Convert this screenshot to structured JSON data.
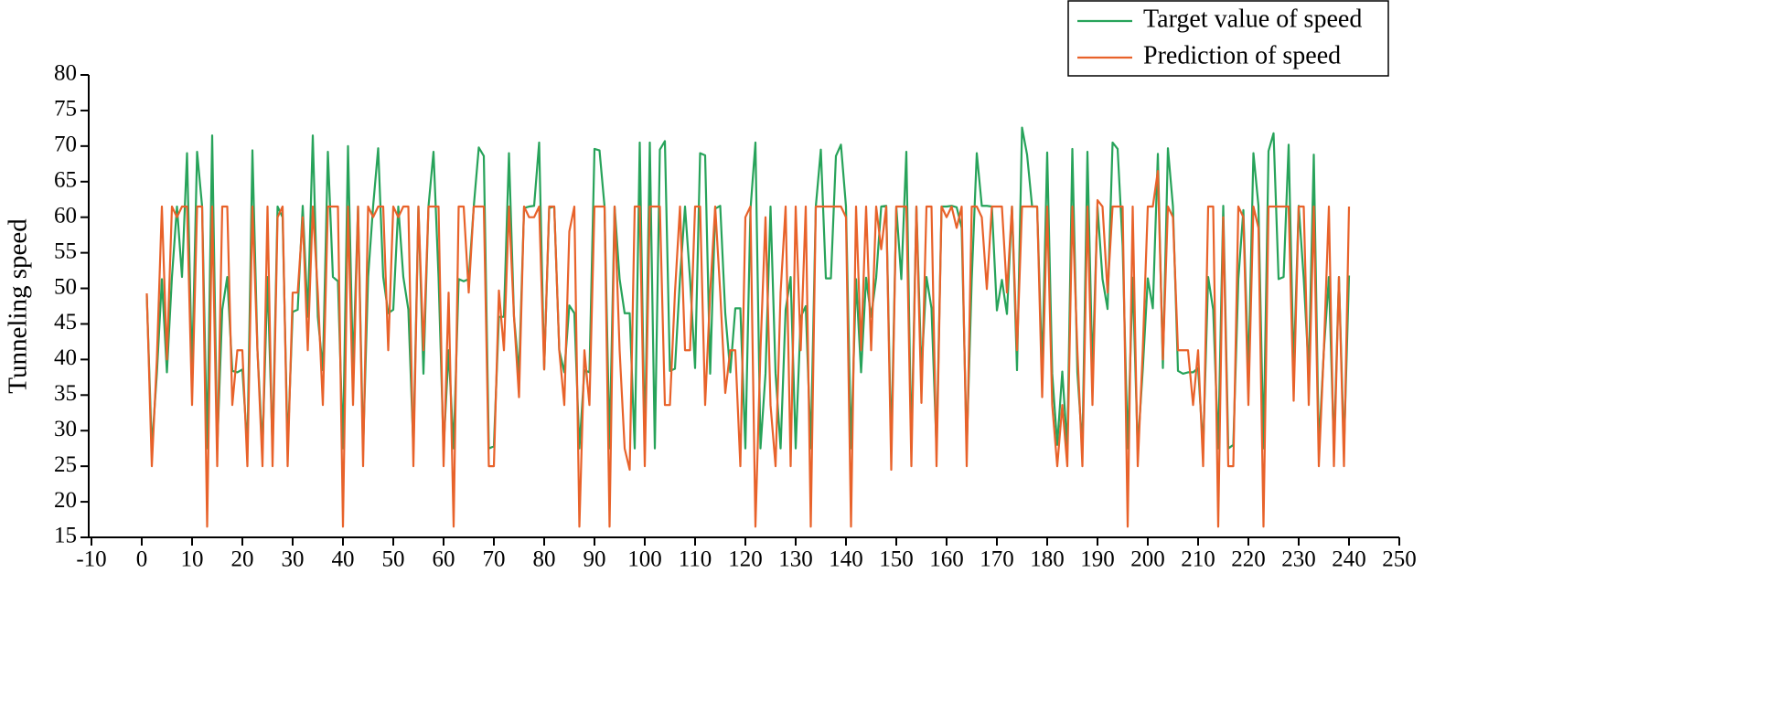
{
  "chart_data": {
    "type": "line",
    "ylabel": "Tunneling speed",
    "x": [
      1,
      2,
      3,
      4,
      5,
      6,
      7,
      8,
      9,
      10,
      11,
      12,
      13,
      14,
      15,
      16,
      17,
      18,
      19,
      20,
      21,
      22,
      23,
      24,
      25,
      26,
      27,
      28,
      29,
      30,
      31,
      32,
      33,
      34,
      35,
      36,
      37,
      38,
      39,
      40,
      41,
      42,
      43,
      44,
      45,
      46,
      47,
      48,
      49,
      50,
      51,
      52,
      53,
      54,
      55,
      56,
      57,
      58,
      59,
      60,
      61,
      62,
      63,
      64,
      65,
      66,
      67,
      68,
      69,
      70,
      71,
      72,
      73,
      74,
      75,
      76,
      77,
      78,
      79,
      80,
      81,
      82,
      83,
      84,
      85,
      86,
      87,
      88,
      89,
      90,
      91,
      92,
      93,
      94,
      95,
      96,
      97,
      98,
      99,
      100,
      101,
      102,
      103,
      104,
      105,
      106,
      107,
      108,
      109,
      110,
      111,
      112,
      113,
      114,
      115,
      116,
      117,
      118,
      119,
      120,
      121,
      122,
      123,
      124,
      125,
      126,
      127,
      128,
      129,
      130,
      131,
      132,
      133,
      134,
      135,
      136,
      137,
      138,
      139,
      140,
      141,
      142,
      143,
      144,
      145,
      146,
      147,
      148,
      149,
      150,
      151,
      152,
      153,
      154,
      155,
      156,
      157,
      158,
      159,
      160,
      161,
      162,
      163,
      164,
      165,
      166,
      167,
      168,
      169,
      170,
      171,
      172,
      173,
      174,
      175,
      176,
      177,
      178,
      179,
      180,
      181,
      182,
      183,
      184,
      185,
      186,
      187,
      188,
      189,
      190,
      191,
      192,
      193,
      194,
      195,
      196,
      197,
      198,
      199,
      200,
      201,
      202,
      203,
      204,
      205,
      206,
      207,
      208,
      209,
      210,
      211,
      212,
      213,
      214,
      215,
      216,
      217,
      218,
      219,
      220,
      221,
      222,
      223,
      224,
      225,
      226,
      227,
      228,
      229,
      230,
      231,
      232,
      233,
      234,
      235,
      236,
      237,
      238,
      239,
      240
    ],
    "series": [
      {
        "name": "Target value of speed",
        "color": "#27a35a",
        "values": [
          49,
          27.5,
          38,
          51.3,
          38.2,
          51.6,
          61.5,
          51.6,
          69,
          38,
          69.2,
          61.5,
          27.5,
          71.5,
          27.5,
          47,
          51.6,
          38.4,
          38.2,
          38.6,
          27.5,
          69.4,
          41.3,
          27.5,
          51.6,
          27.5,
          61.5,
          60,
          27.5,
          46.7,
          47,
          61.6,
          46,
          71.5,
          46,
          38.5,
          69.2,
          51.6,
          51,
          27.5,
          70,
          38.4,
          61.5,
          27.5,
          51.6,
          61.6,
          69.7,
          51.6,
          46.5,
          47,
          61.5,
          51.6,
          47,
          27.5,
          61.5,
          38,
          61.5,
          69.2,
          51.6,
          27.5,
          41.3,
          27.5,
          51.3,
          51,
          51.3,
          61.5,
          69.8,
          68.6,
          27.5,
          27.8,
          46,
          46,
          69,
          46,
          38,
          61.3,
          61.5,
          61.6,
          70.5,
          38.6,
          61.3,
          61.5,
          41.3,
          38.2,
          47.6,
          46.5,
          27.5,
          38.5,
          38.2,
          69.6,
          69.4,
          61.5,
          27.5,
          61.5,
          51.3,
          46.5,
          46.5,
          27.5,
          70.5,
          27.5,
          70.5,
          27.5,
          69.5,
          70.7,
          38.4,
          38.7,
          51.4,
          61.5,
          51.3,
          38.8,
          69,
          68.7,
          38,
          61.2,
          61.6,
          46.5,
          38.2,
          47.2,
          47.2,
          27.5,
          61,
          70.5,
          27.5,
          38,
          61.5,
          38,
          27.5,
          47,
          51.6,
          27.5,
          46,
          47.5,
          27.5,
          61.5,
          69.5,
          51.4,
          51.4,
          68.6,
          70.2,
          61.5,
          27.5,
          51.3,
          38.2,
          51.5,
          46,
          51.5,
          61.5,
          61.6,
          27.5,
          61.5,
          51.3,
          69.2,
          27.5,
          61.5,
          38.2,
          51.6,
          47.2,
          27.5,
          61.5,
          61.5,
          61.6,
          61.4,
          58.5,
          27.5,
          51.3,
          69,
          61.6,
          61.6,
          61.5,
          46.9,
          51.2,
          46.4,
          61.5,
          38.5,
          72.6,
          68.8,
          61.5,
          61.5,
          38.5,
          69.1,
          38,
          28,
          38.3,
          27.5,
          69.6,
          38.2,
          27.5,
          69.2,
          38.2,
          61.5,
          51.3,
          47.1,
          70.5,
          69.6,
          56,
          27.5,
          51.5,
          27.5,
          38.6,
          51.4,
          47.2,
          68.9,
          38.8,
          69.7,
          61.5,
          38.4,
          38,
          38.2,
          38.2,
          38.8,
          27.5,
          51.6,
          47,
          27.5,
          61.6,
          27.5,
          28,
          51.3,
          61,
          38,
          69,
          61.6,
          27.5,
          69.3,
          71.8,
          51.3,
          51.6,
          70.2,
          38.4,
          61.6,
          51.4,
          38.3,
          68.8,
          27.5,
          41.3,
          51.6,
          27.5,
          51.6,
          27.5,
          51.8
        ]
      },
      {
        "name": "Prediction of speed",
        "color": "#e8622a",
        "values": [
          49.3,
          25,
          40,
          61.5,
          40,
          61.5,
          60,
          61.5,
          61.5,
          33.6,
          61.5,
          61.5,
          16.5,
          61.5,
          25,
          61.5,
          61.5,
          33.6,
          41.3,
          41.3,
          25,
          61.5,
          41.3,
          25,
          61.5,
          25,
          60,
          61.5,
          25,
          49.4,
          49.4,
          60,
          41.3,
          61.5,
          49.4,
          33.6,
          61.5,
          61.5,
          61.5,
          16.5,
          61.5,
          33.6,
          61.5,
          25,
          61.5,
          60,
          61.5,
          61.5,
          41.3,
          61.5,
          60,
          61.5,
          61.5,
          25,
          61.5,
          41.3,
          61.5,
          61.5,
          61.5,
          25,
          49.4,
          16.5,
          61.5,
          61.5,
          49.4,
          61.5,
          61.5,
          61.5,
          25,
          25,
          49.7,
          41.3,
          61.5,
          46,
          34.7,
          61.5,
          60,
          60,
          61.5,
          38.6,
          61.5,
          61.5,
          41.3,
          33.6,
          58,
          61.5,
          16.5,
          41.3,
          33.6,
          61.5,
          61.5,
          61.5,
          16.5,
          61.5,
          41.3,
          27.5,
          24.5,
          61.5,
          61.5,
          25,
          61.5,
          61.5,
          61.5,
          33.6,
          33.6,
          49.4,
          61.5,
          41.3,
          41.3,
          61.5,
          61.5,
          33.6,
          49.4,
          61.5,
          49.4,
          35.3,
          41.3,
          41.3,
          25,
          60,
          61.5,
          16.5,
          41.3,
          60,
          33.6,
          25,
          49.4,
          61.5,
          25,
          61.5,
          41.3,
          61.5,
          16.5,
          61.5,
          61.5,
          61.5,
          61.5,
          61.5,
          61.5,
          60,
          16.5,
          61.5,
          41.3,
          61.5,
          41.3,
          61.5,
          55.5,
          61.5,
          24.5,
          61.5,
          61.5,
          61.5,
          25,
          61.5,
          33.9,
          61.5,
          61.5,
          25,
          61.5,
          60,
          61.5,
          58.5,
          61.5,
          25,
          61.5,
          61.5,
          60,
          49.9,
          61.5,
          61.5,
          61.5,
          49.4,
          61.5,
          41.3,
          61.5,
          61.5,
          61.5,
          61.5,
          34.7,
          61.5,
          33.6,
          25,
          33.6,
          25,
          61.5,
          41.3,
          25,
          61.5,
          33.6,
          62.4,
          61.5,
          49.4,
          61.5,
          61.5,
          61.5,
          16.5,
          61.5,
          25,
          41.3,
          61.5,
          61.5,
          66.5,
          40,
          61.5,
          60,
          41.3,
          41.3,
          41.3,
          33.6,
          41.3,
          25,
          61.5,
          61.5,
          16.5,
          60,
          25,
          25,
          61.5,
          60,
          33.6,
          61.5,
          58.5,
          16.5,
          61.5,
          61.5,
          61.5,
          61.5,
          61.5,
          34.2,
          61.5,
          61.5,
          33.6,
          61.5,
          25,
          41.3,
          61.5,
          25,
          51.6,
          25,
          61.5
        ]
      }
    ],
    "xlim": [
      -10,
      250
    ],
    "xticks": [
      -10,
      0,
      10,
      20,
      30,
      40,
      50,
      60,
      70,
      80,
      90,
      100,
      110,
      120,
      130,
      140,
      150,
      160,
      170,
      180,
      190,
      200,
      210,
      220,
      230,
      240,
      250
    ],
    "ylim": [
      15,
      80
    ],
    "yticks": [
      15,
      20,
      25,
      30,
      35,
      40,
      45,
      50,
      55,
      60,
      65,
      70,
      75,
      80
    ],
    "legend": "top-right"
  }
}
